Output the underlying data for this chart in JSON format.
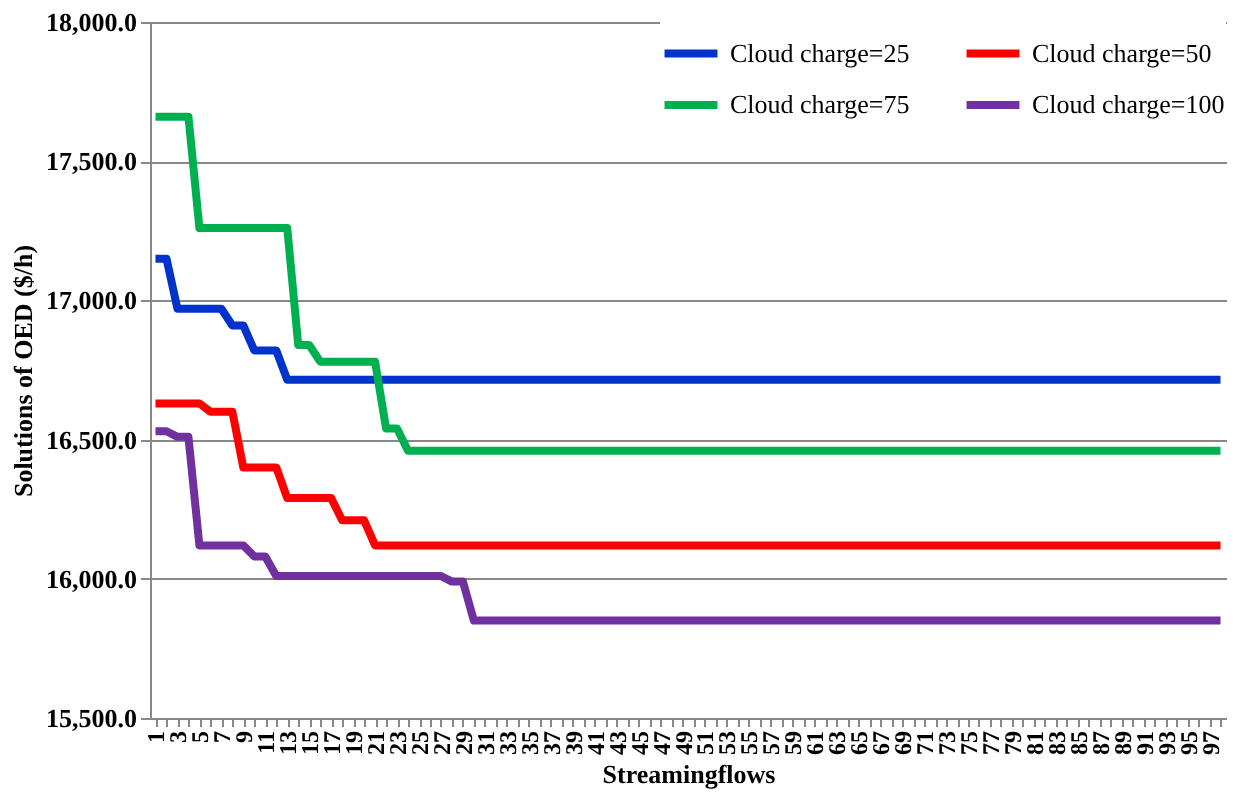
{
  "chart_data": {
    "type": "line",
    "xlabel": "Streamingflows",
    "ylabel": "Solutions of OED ($/h)",
    "categories": [
      "1",
      null,
      "3",
      null,
      "5",
      null,
      "7",
      null,
      "9",
      null,
      "11",
      null,
      "13",
      null,
      "15",
      null,
      "17",
      null,
      "19",
      null,
      "21",
      null,
      "23",
      null,
      "25",
      null,
      "27",
      null,
      "29",
      null,
      "31",
      null,
      "33",
      null,
      "35",
      null,
      "37",
      null,
      "39",
      null,
      "41",
      null,
      "43",
      null,
      "45",
      null,
      "47",
      null,
      "49",
      null,
      "51",
      null,
      "53",
      null,
      "55",
      null,
      "57",
      null,
      "59",
      null,
      "61",
      null,
      "63",
      null,
      "65",
      null,
      "67",
      null,
      "69",
      null,
      "71",
      null,
      "73",
      null,
      "75",
      null,
      "77",
      null,
      "79",
      null,
      "81",
      null,
      "83",
      null,
      "85",
      null,
      "87",
      null,
      "89",
      null,
      "91",
      null,
      "93",
      null,
      "95",
      null,
      "97",
      null
    ],
    "series": [
      {
        "name": "Cloud charge=25",
        "color": "#0033cc",
        "values": [
          17150,
          17150,
          16970,
          16970,
          16970,
          16970,
          16970,
          16910,
          16910,
          16820,
          16820,
          16820,
          16715,
          16715,
          16715,
          16715,
          16715,
          16715,
          16715,
          16715,
          16715,
          16715,
          16715,
          16715,
          16715,
          16715,
          16715,
          16715,
          16715,
          16715,
          16715,
          16715,
          16715,
          16715,
          16715,
          16715,
          16715,
          16715,
          16715,
          16715,
          16715,
          16715,
          16715,
          16715,
          16715,
          16715,
          16715,
          16715,
          16715,
          16715,
          16715,
          16715,
          16715,
          16715,
          16715,
          16715,
          16715,
          16715,
          16715,
          16715,
          16715,
          16715,
          16715,
          16715,
          16715,
          16715,
          16715,
          16715,
          16715,
          16715,
          16715,
          16715,
          16715,
          16715,
          16715,
          16715,
          16715,
          16715,
          16715,
          16715,
          16715,
          16715,
          16715,
          16715,
          16715,
          16715,
          16715,
          16715,
          16715,
          16715,
          16715,
          16715,
          16715,
          16715,
          16715,
          16715,
          16715,
          16715
        ]
      },
      {
        "name": "Cloud charge=50",
        "color": "#ff0000",
        "values": [
          16630,
          16630,
          16630,
          16630,
          16630,
          16600,
          16600,
          16600,
          16400,
          16400,
          16400,
          16400,
          16290,
          16290,
          16290,
          16290,
          16290,
          16210,
          16210,
          16210,
          16120,
          16120,
          16120,
          16120,
          16120,
          16120,
          16120,
          16120,
          16120,
          16120,
          16120,
          16120,
          16120,
          16120,
          16120,
          16120,
          16120,
          16120,
          16120,
          16120,
          16120,
          16120,
          16120,
          16120,
          16120,
          16120,
          16120,
          16120,
          16120,
          16120,
          16120,
          16120,
          16120,
          16120,
          16120,
          16120,
          16120,
          16120,
          16120,
          16120,
          16120,
          16120,
          16120,
          16120,
          16120,
          16120,
          16120,
          16120,
          16120,
          16120,
          16120,
          16120,
          16120,
          16120,
          16120,
          16120,
          16120,
          16120,
          16120,
          16120,
          16120,
          16120,
          16120,
          16120,
          16120,
          16120,
          16120,
          16120,
          16120,
          16120,
          16120,
          16120,
          16120,
          16120,
          16120,
          16120,
          16120,
          16120
        ]
      },
      {
        "name": "Cloud charge=75",
        "color": "#00b050",
        "values": [
          17660,
          17660,
          17660,
          17660,
          17260,
          17260,
          17260,
          17260,
          17260,
          17260,
          17260,
          17260,
          17260,
          16840,
          16840,
          16780,
          16780,
          16780,
          16780,
          16780,
          16780,
          16540,
          16540,
          16460,
          16460,
          16460,
          16460,
          16460,
          16460,
          16460,
          16460,
          16460,
          16460,
          16460,
          16460,
          16460,
          16460,
          16460,
          16460,
          16460,
          16460,
          16460,
          16460,
          16460,
          16460,
          16460,
          16460,
          16460,
          16460,
          16460,
          16460,
          16460,
          16460,
          16460,
          16460,
          16460,
          16460,
          16460,
          16460,
          16460,
          16460,
          16460,
          16460,
          16460,
          16460,
          16460,
          16460,
          16460,
          16460,
          16460,
          16460,
          16460,
          16460,
          16460,
          16460,
          16460,
          16460,
          16460,
          16460,
          16460,
          16460,
          16460,
          16460,
          16460,
          16460,
          16460,
          16460,
          16460,
          16460,
          16460,
          16460,
          16460,
          16460,
          16460,
          16460,
          16460,
          16460,
          16460
        ]
      },
      {
        "name": "Cloud charge=100",
        "color": "#7030a0",
        "values": [
          16530,
          16530,
          16510,
          16510,
          16120,
          16120,
          16120,
          16120,
          16120,
          16080,
          16080,
          16010,
          16010,
          16010,
          16010,
          16010,
          16010,
          16010,
          16010,
          16010,
          16010,
          16010,
          16010,
          16010,
          16010,
          16010,
          16010,
          15990,
          15990,
          15850,
          15850,
          15850,
          15850,
          15850,
          15850,
          15850,
          15850,
          15850,
          15850,
          15850,
          15850,
          15850,
          15850,
          15850,
          15850,
          15850,
          15850,
          15850,
          15850,
          15850,
          15850,
          15850,
          15850,
          15850,
          15850,
          15850,
          15850,
          15850,
          15850,
          15850,
          15850,
          15850,
          15850,
          15850,
          15850,
          15850,
          15850,
          15850,
          15850,
          15850,
          15850,
          15850,
          15850,
          15850,
          15850,
          15850,
          15850,
          15850,
          15850,
          15850,
          15850,
          15850,
          15850,
          15850,
          15850,
          15850,
          15850,
          15850,
          15850,
          15850,
          15850,
          15850,
          15850,
          15850,
          15850,
          15850,
          15850,
          15850
        ]
      }
    ],
    "ylim": [
      15500,
      18000
    ],
    "yticks": [
      {
        "value": 15500,
        "label": "15,500.0"
      },
      {
        "value": 16000,
        "label": "16,000.0"
      },
      {
        "value": 16500,
        "label": "16,500.0"
      },
      {
        "value": 17000,
        "label": "17,000.0"
      },
      {
        "value": 17500,
        "label": "17,500.0"
      },
      {
        "value": 18000,
        "label": "18,000.0"
      }
    ],
    "grid": "y",
    "legend": "top right",
    "marker": "none",
    "line_style": "solid"
  }
}
